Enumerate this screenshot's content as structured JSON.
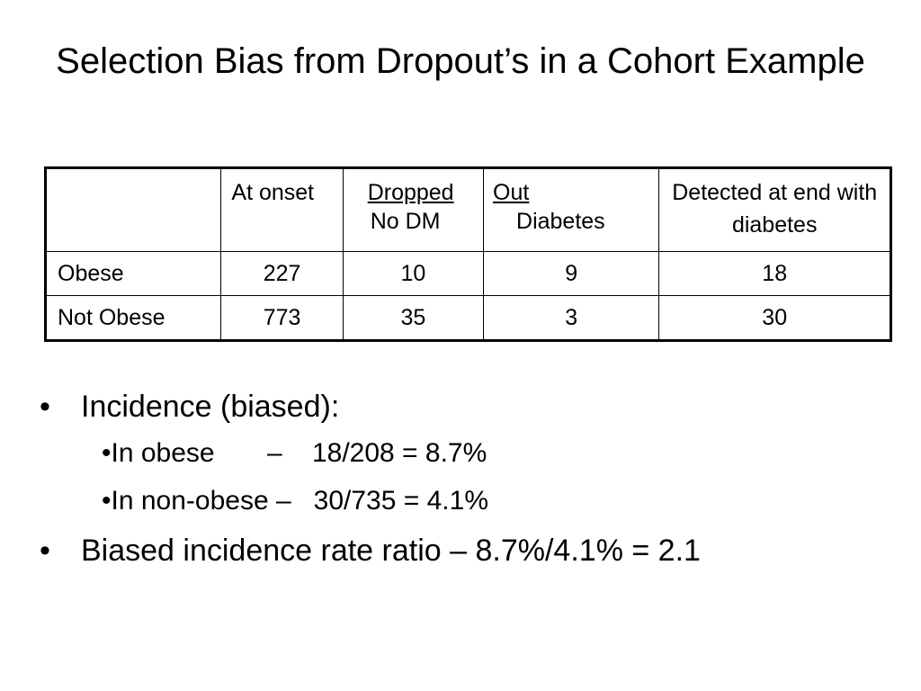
{
  "title": "Selection Bias from Dropout’s in a Cohort Example",
  "table": {
    "headers": [
      {
        "line1": "",
        "line2": ""
      },
      {
        "line1": "At onset",
        "line2": ""
      },
      {
        "line1": "Dropped",
        "line2": "No DM"
      },
      {
        "line1": "Out",
        "line2": "Diabetes"
      },
      {
        "line1": "Detected at end with diabetes",
        "line2": ""
      }
    ],
    "rows": [
      {
        "label": "Obese",
        "at_onset": "227",
        "dropped_no_dm": "10",
        "out_diabetes": "9",
        "detected_end": "18"
      },
      {
        "label": "Not Obese",
        "at_onset": "773",
        "dropped_no_dm": "35",
        "out_diabetes": "3",
        "detected_end": "30"
      }
    ]
  },
  "bullets": {
    "incidence_heading": "Incidence (biased):",
    "obese_line": "•In obese       –    18/208 = 8.7%",
    "nonobese_line": "•In non-obese –   30/735 = 4.1%",
    "ratio_line": "Biased incidence rate ratio –   8.7%/4.1% = 2.1"
  },
  "bullet_symbol": "•"
}
